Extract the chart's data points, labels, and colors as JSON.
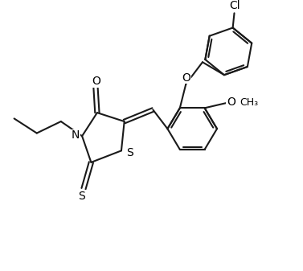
{
  "bg_color": "#ffffff",
  "line_color": "#1a1a1a",
  "text_color": "#000000",
  "lw": 1.5,
  "fig_width": 3.77,
  "fig_height": 3.37,
  "dpi": 100,
  "xlim": [
    0,
    10
  ],
  "ylim": [
    0,
    9
  ]
}
